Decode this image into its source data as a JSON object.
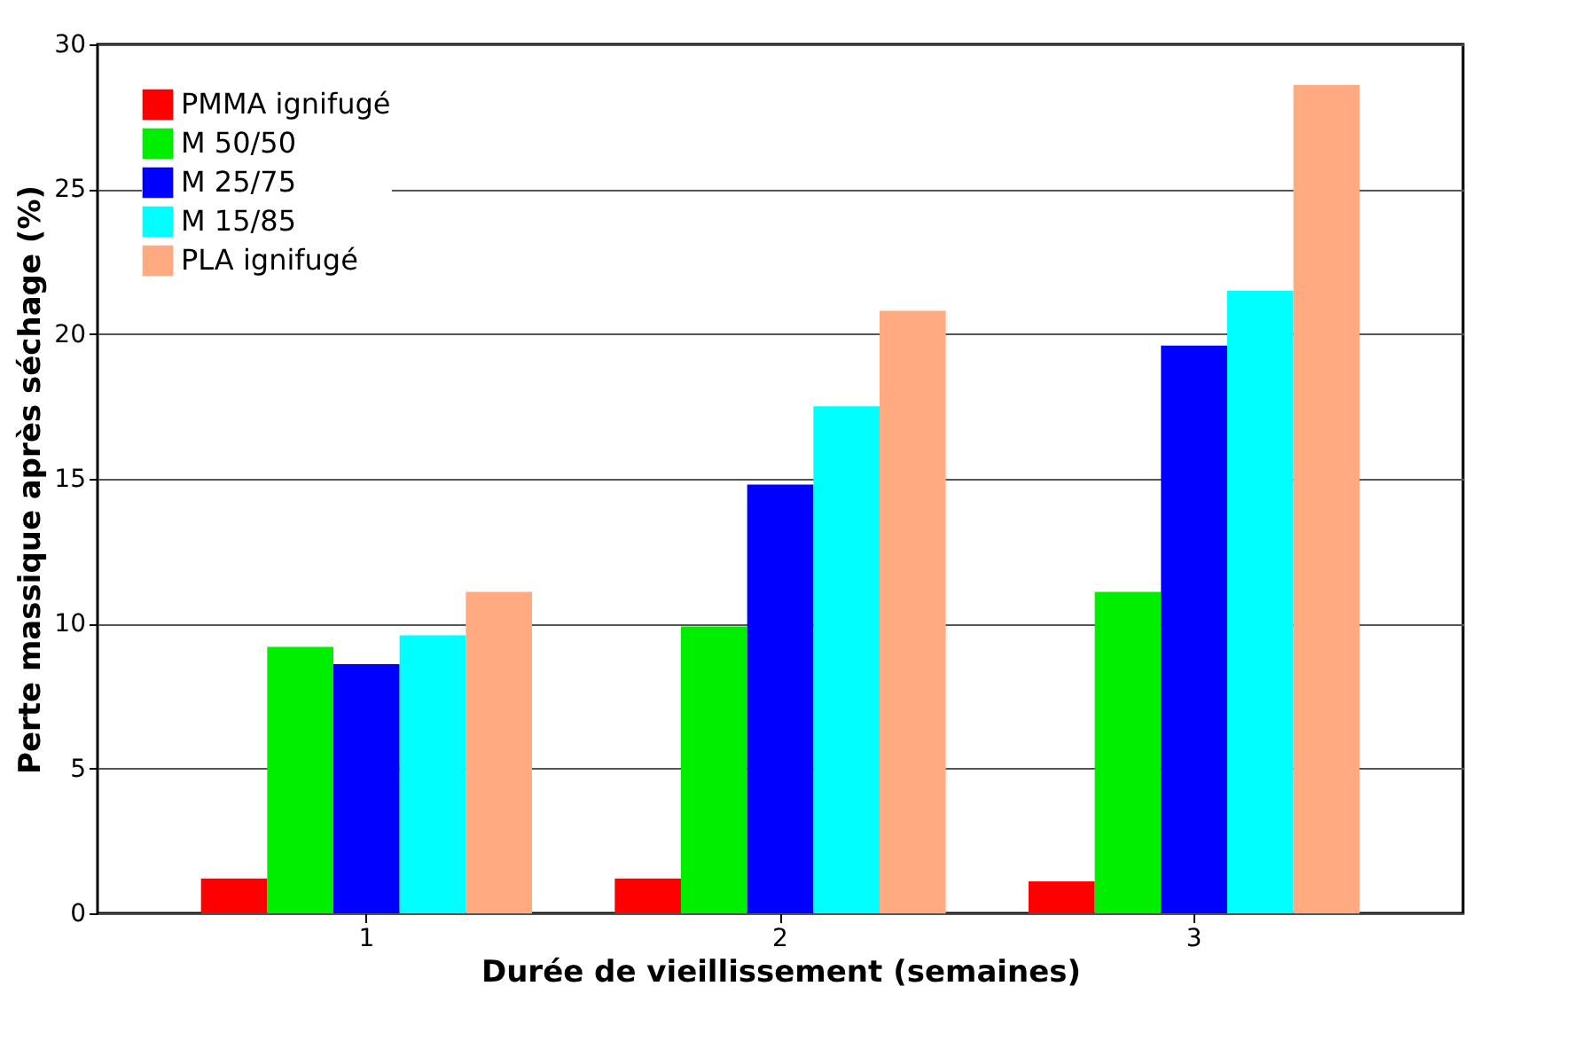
{
  "chart_data": {
    "type": "bar",
    "xlabel": "Durée de vieillissement (semaines)",
    "ylabel": "Perte massique après séchage (%)",
    "categories": [
      "1",
      "2",
      "3"
    ],
    "series": [
      {
        "name": "PMMA ignifugé",
        "color": "#ff0000",
        "values": [
          1.2,
          1.2,
          1.1
        ]
      },
      {
        "name": "M 50/50",
        "color": "#00ee00",
        "values": [
          9.2,
          9.9,
          11.1
        ]
      },
      {
        "name": "M 25/75",
        "color": "#0000ff",
        "values": [
          8.6,
          14.8,
          19.6
        ]
      },
      {
        "name": "M 15/85",
        "color": "#00ffff",
        "values": [
          9.6,
          17.5,
          21.5
        ]
      },
      {
        "name": "PLA ignifugé",
        "color": "#ffaa80",
        "values": [
          11.1,
          20.8,
          28.6
        ]
      }
    ],
    "ylim": [
      0,
      30
    ],
    "yticks": [
      0,
      5,
      10,
      15,
      20,
      25,
      30
    ],
    "grid": "y",
    "legend": "top left"
  }
}
